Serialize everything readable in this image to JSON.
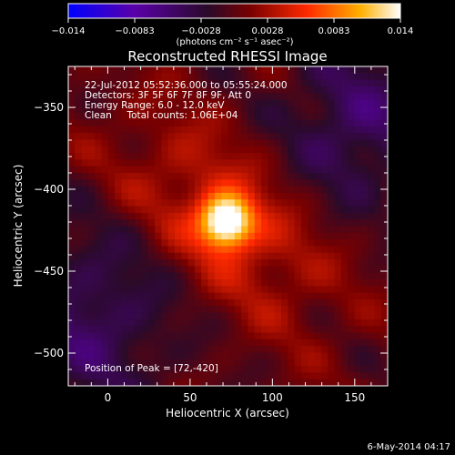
{
  "chart_data": {
    "type": "heatmap",
    "title": "Reconstructed RHESSI Image",
    "xlabel": "Heliocentric X (arcsec)",
    "ylabel": "Heliocentric Y (arcsec)",
    "xlim": [
      -24,
      170
    ],
    "ylim": [
      -520,
      -325
    ],
    "xticks": [
      0,
      50,
      100,
      150
    ],
    "yticks": [
      -350,
      -400,
      -450,
      -500
    ],
    "xtick_labels": [
      "0",
      "50",
      "100",
      "150"
    ],
    "ytick_labels": [
      "−350",
      "−400",
      "−450",
      "−500"
    ],
    "colorbar": {
      "range": [
        -0.014,
        0.014
      ],
      "tick_labels": [
        "−0.014",
        "−0.0083",
        "−0.0028",
        "0.0028",
        "0.0083",
        "0.014"
      ],
      "units": "(photons cm⁻² s⁻¹ asec⁻²)",
      "colormap": [
        "#0000ff",
        "#5a00a8",
        "#2a0a2a",
        "#7a0000",
        "#ff2a00",
        "#ffb000",
        "#ffffff"
      ]
    },
    "annotations": [
      "22-Jul-2012 05:52:36.000 to 05:55:24.000",
      "Detectors: 3F 5F 6F 7F 8F 9F, Att 0",
      "Energy Range: 6.0 - 12.0 keV",
      "Clean     Total counts: 1.06E+04"
    ],
    "peak_label": "Position of Peak = [72,-420]",
    "peak_position": [
      72,
      -420
    ],
    "grid": false
  },
  "footer": {
    "date": "6-May-2014 04:17"
  }
}
